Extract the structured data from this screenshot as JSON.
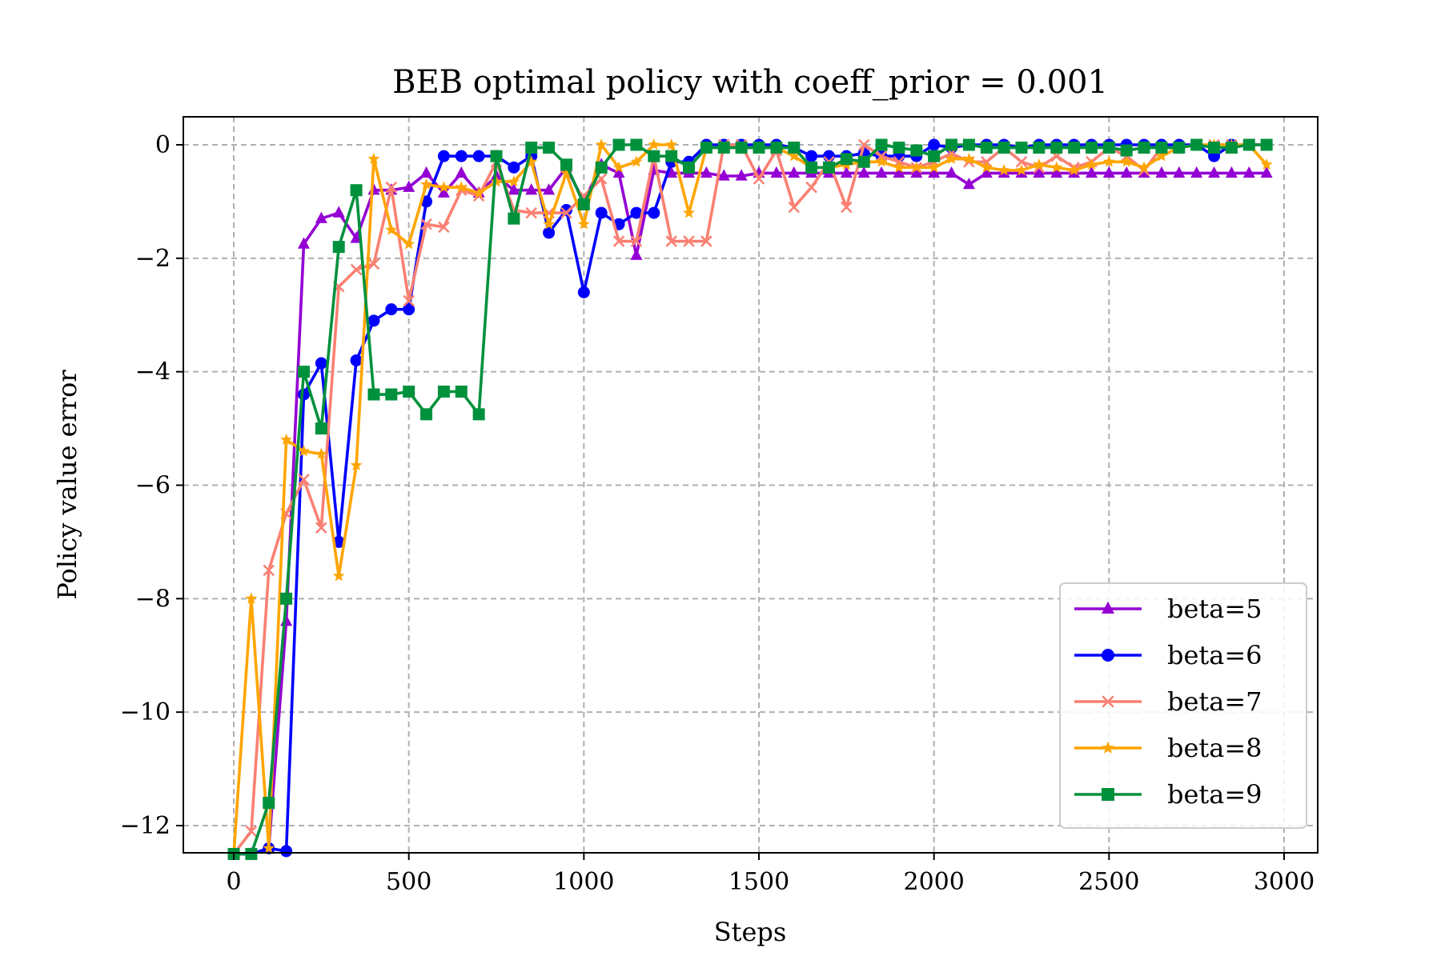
{
  "chart_data": {
    "type": "line",
    "title": "BEB optimal policy with coeff_prior = 0.001",
    "xlabel": "Steps",
    "ylabel": "Policy value error",
    "xlim": [
      -150,
      3100
    ],
    "ylim": [
      -12.5,
      0.5
    ],
    "xticks": [
      0,
      500,
      1000,
      1500,
      2000,
      2500,
      3000
    ],
    "xtick_labels": [
      "0",
      "500",
      "1000",
      "1500",
      "2000",
      "2500",
      "3000"
    ],
    "yticks": [
      0,
      -2,
      -4,
      -6,
      -8,
      -10,
      -12
    ],
    "ytick_labels": [
      "0",
      "−2",
      "−4",
      "−6",
      "−8",
      "−10",
      "−12"
    ],
    "grid": true,
    "legend_position": "lower-right",
    "x": [
      0,
      50,
      100,
      150,
      200,
      250,
      300,
      350,
      400,
      450,
      500,
      550,
      600,
      650,
      700,
      750,
      800,
      850,
      900,
      950,
      1000,
      1050,
      1100,
      1150,
      1200,
      1250,
      1300,
      1350,
      1400,
      1450,
      1500,
      1550,
      1600,
      1650,
      1700,
      1750,
      1800,
      1850,
      1900,
      1950,
      2000,
      2050,
      2100,
      2150,
      2200,
      2250,
      2300,
      2350,
      2400,
      2450,
      2500,
      2550,
      2600,
      2650,
      2700,
      2750,
      2800,
      2850,
      2900,
      2950
    ],
    "series": [
      {
        "name": "beta=5",
        "color": "#9400D3",
        "marker": "triangle",
        "values": [
          -12.5,
          -12.5,
          -12.4,
          -8.4,
          -1.75,
          -1.3,
          -1.2,
          -1.65,
          -0.8,
          -0.8,
          -0.75,
          -0.5,
          -0.85,
          -0.5,
          -0.85,
          -0.55,
          -0.8,
          -0.8,
          -0.8,
          -0.4,
          -1.0,
          -0.35,
          -0.5,
          -1.95,
          -0.45,
          -0.5,
          -0.5,
          -0.5,
          -0.55,
          -0.55,
          -0.5,
          -0.5,
          -0.5,
          -0.5,
          -0.5,
          -0.5,
          -0.5,
          -0.5,
          -0.5,
          -0.5,
          -0.5,
          -0.5,
          -0.7,
          -0.5,
          -0.5,
          -0.5,
          -0.5,
          -0.5,
          -0.5,
          -0.5,
          -0.5,
          -0.5,
          -0.5,
          -0.5,
          -0.5,
          -0.5,
          -0.5,
          -0.5,
          -0.5,
          -0.5
        ]
      },
      {
        "name": "beta=6",
        "color": "#0000FF",
        "marker": "circle",
        "values": [
          -12.5,
          -12.5,
          -12.4,
          -12.45,
          -4.4,
          -3.85,
          -7.0,
          -3.8,
          -3.1,
          -2.9,
          -2.9,
          -1.0,
          -0.2,
          -0.2,
          -0.2,
          -0.2,
          -0.4,
          -0.2,
          -1.55,
          -1.15,
          -2.6,
          -1.2,
          -1.4,
          -1.2,
          -1.2,
          -0.3,
          -0.3,
          0.0,
          0.0,
          0.0,
          0.0,
          0.0,
          -0.05,
          -0.2,
          -0.2,
          -0.2,
          -0.15,
          -0.2,
          -0.2,
          -0.2,
          0.0,
          -0.05,
          0.0,
          0.0,
          0.0,
          -0.05,
          0.0,
          0.0,
          0.0,
          0.0,
          0.0,
          0.0,
          0.0,
          0.0,
          0.0,
          0.0,
          -0.2,
          0.0,
          0.0,
          0.0
        ]
      },
      {
        "name": "beta=7",
        "color": "#FA8072",
        "marker": "x",
        "values": [
          -12.5,
          -12.1,
          -7.5,
          -6.5,
          -5.9,
          -6.75,
          -2.5,
          -2.2,
          -2.1,
          -0.75,
          -2.75,
          -1.4,
          -1.45,
          -0.8,
          -0.9,
          -0.3,
          -1.15,
          -1.2,
          -1.2,
          -1.2,
          -0.9,
          -0.6,
          -1.7,
          -1.7,
          -0.2,
          -1.7,
          -1.7,
          -1.7,
          0.0,
          0.0,
          -0.6,
          -0.1,
          -1.1,
          -0.75,
          -0.3,
          -1.1,
          0.0,
          -0.2,
          -0.3,
          -0.4,
          -0.3,
          -0.15,
          -0.3,
          -0.3,
          -0.05,
          -0.3,
          -0.4,
          -0.2,
          -0.4,
          -0.3,
          -0.05,
          -0.2,
          -0.45,
          -0.05,
          -0.05,
          0.0,
          0.0,
          0.0,
          0.0,
          0.0
        ]
      },
      {
        "name": "beta=8",
        "color": "#FFA500",
        "marker": "star",
        "values": [
          -12.5,
          -8.0,
          -12.4,
          -5.2,
          -5.4,
          -5.45,
          -7.6,
          -5.65,
          -0.25,
          -1.5,
          -1.75,
          -0.7,
          -0.75,
          -0.75,
          -0.85,
          -0.65,
          -0.65,
          -0.3,
          -1.4,
          -0.5,
          -1.4,
          0.0,
          -0.4,
          -0.3,
          0.0,
          0.0,
          -1.2,
          -0.05,
          -0.05,
          -0.05,
          -0.05,
          -0.05,
          -0.2,
          -0.4,
          -0.4,
          -0.35,
          -0.3,
          -0.3,
          -0.4,
          -0.4,
          -0.4,
          -0.25,
          -0.25,
          -0.4,
          -0.45,
          -0.45,
          -0.35,
          -0.4,
          -0.45,
          -0.35,
          -0.3,
          -0.3,
          -0.4,
          -0.2,
          -0.05,
          0.0,
          0.0,
          0.0,
          0.0,
          -0.35
        ]
      },
      {
        "name": "beta=9",
        "color": "#00913C",
        "marker": "square",
        "values": [
          -12.5,
          -12.5,
          -11.6,
          -8.0,
          -4.0,
          -5.0,
          -1.8,
          -0.8,
          -4.4,
          -4.4,
          -4.35,
          -4.75,
          -4.35,
          -4.35,
          -4.75,
          -0.2,
          -1.3,
          -0.05,
          -0.05,
          -0.35,
          -1.05,
          -0.4,
          0.0,
          0.0,
          -0.2,
          -0.2,
          -0.4,
          -0.05,
          -0.05,
          -0.05,
          -0.05,
          -0.05,
          -0.05,
          -0.4,
          -0.4,
          -0.25,
          -0.3,
          0.0,
          -0.05,
          -0.1,
          -0.2,
          0.0,
          0.0,
          -0.05,
          -0.05,
          -0.05,
          -0.05,
          -0.05,
          -0.05,
          -0.05,
          -0.05,
          -0.1,
          -0.05,
          -0.05,
          -0.05,
          0.0,
          -0.05,
          -0.05,
          0.0,
          0.0
        ]
      }
    ]
  }
}
